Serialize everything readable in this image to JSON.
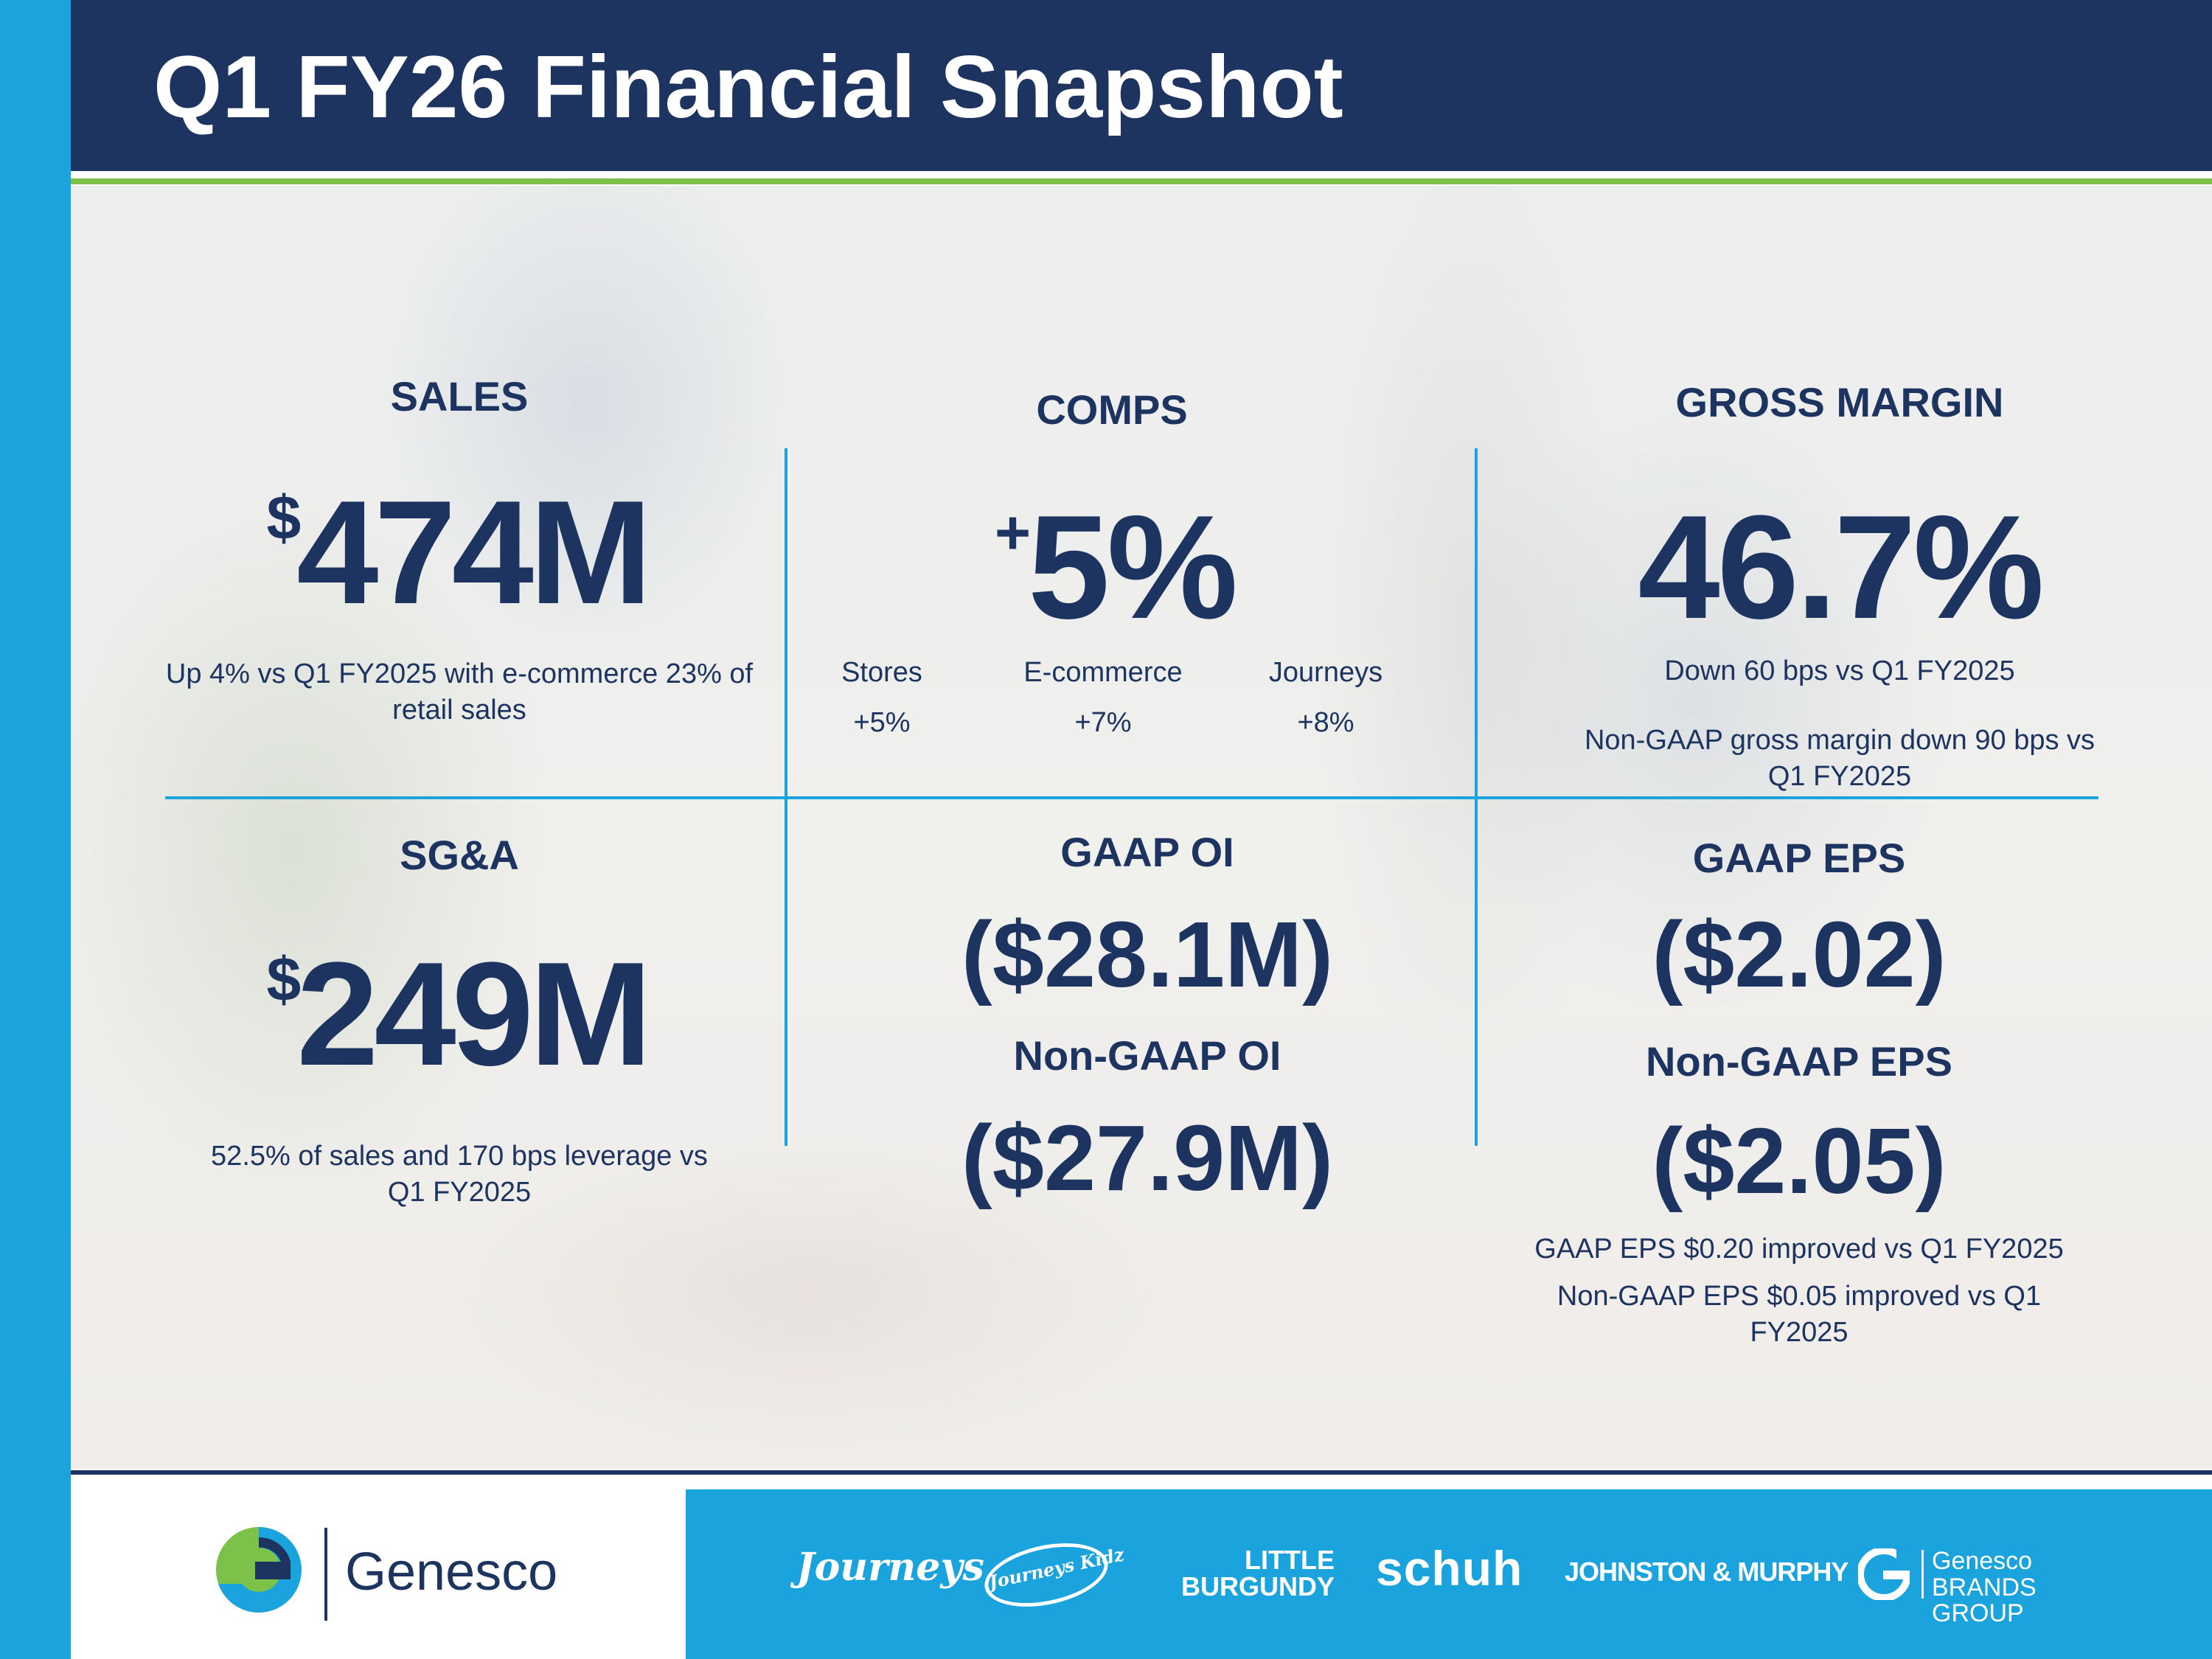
{
  "header": {
    "title": "Q1 FY26 Financial Snapshot"
  },
  "colors": {
    "navy": "#1d3461",
    "accent_blue": "#1aa3dd",
    "accent_green": "#7cc24a"
  },
  "sales": {
    "title": "SALES",
    "currency": "$",
    "value": "474M",
    "note": "Up 4% vs Q1 FY2025 with e-commerce 23% of retail sales"
  },
  "comps": {
    "title": "COMPS",
    "sign": "+",
    "value": "5%",
    "items": [
      {
        "label": "Stores",
        "value": "+5%"
      },
      {
        "label": "E-commerce",
        "value": "+7%"
      },
      {
        "label": "Journeys",
        "value": "+8%"
      }
    ]
  },
  "gross_margin": {
    "title": "GROSS MARGIN",
    "value": "46.7%",
    "note1": "Down 60 bps vs Q1 FY2025",
    "note2": "Non-GAAP gross margin down 90 bps vs Q1 FY2025"
  },
  "sga": {
    "title": "SG&A",
    "currency": "$",
    "value": "249M",
    "note": "52.5% of sales and 170 bps leverage vs Q1 FY2025"
  },
  "oi": {
    "gaap_title": "GAAP OI",
    "gaap_value": "($28.1M)",
    "nongaap_title": "Non-GAAP OI",
    "nongaap_value": "($27.9M)"
  },
  "eps": {
    "gaap_title": "GAAP EPS",
    "gaap_value": "($2.02)",
    "nongaap_title": "Non-GAAP EPS",
    "nongaap_value": "($2.05)",
    "note1": "GAAP EPS $0.20 improved vs Q1 FY2025",
    "note2": "Non-GAAP EPS $0.05 improved vs Q1 FY2025"
  },
  "footer": {
    "company_logo_text": "Genesco",
    "brands": [
      {
        "name": "Journeys",
        "icon": "journeys-logo"
      },
      {
        "name": "Journeys Kidz",
        "icon": "journeys-kidz-logo"
      },
      {
        "name": "LITTLE BURGUNDY",
        "icon": "little-burgundy-logo"
      },
      {
        "name": "schuh",
        "icon": "schuh-logo"
      },
      {
        "name": "JOHNSTON & MURPHY",
        "icon": "johnston-murphy-logo"
      },
      {
        "name": "Genesco BRANDS GROUP",
        "icon": "genesco-brands-group-logo"
      }
    ]
  }
}
